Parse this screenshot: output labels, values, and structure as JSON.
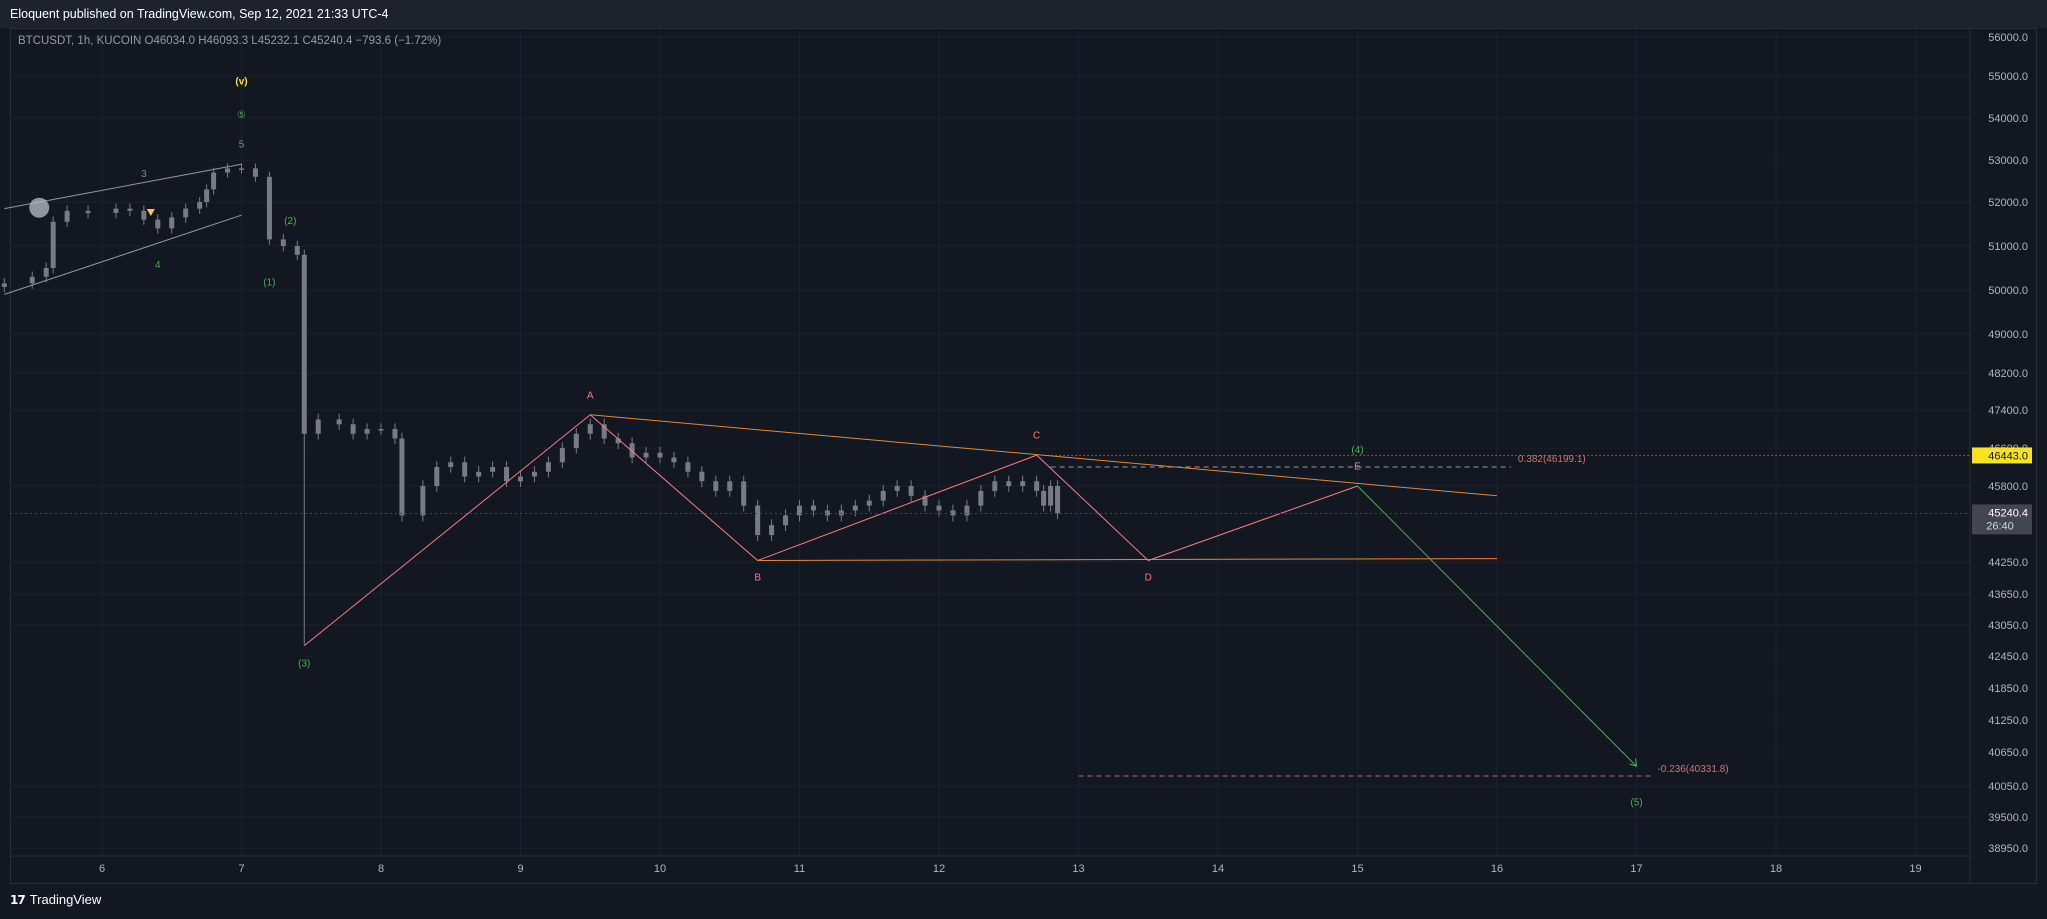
{
  "header": {
    "published_text": "Eloquent published on TradingView.com, Sep 12, 2021 21:33 UTC-4"
  },
  "legend": {
    "text": "BTCUSDT, 1h, KUCOIN  O46034.0  H46093.3  L45232.1  C45240.4  −793.6 (−1.72%)"
  },
  "footer": {
    "brand": "TradingView",
    "logo_icon": "tradingview-logo-icon"
  },
  "colors": {
    "background": "#131722",
    "grid": "#1c2030",
    "candle": "#787b86",
    "wave_green": "#4caf50",
    "wave_red": "#f77c80",
    "triangle_orange": "#e0873c",
    "wave_v": "#f2e437",
    "price_tag": "#f7e41f",
    "current_tag": "#434651"
  },
  "chart_data": {
    "type": "candlestick",
    "symbol": "BTCUSDT",
    "interval": "1h",
    "exchange": "KUCOIN",
    "ohlc": {
      "open": 46034.0,
      "high": 46093.3,
      "low": 45232.1,
      "close": 45240.4,
      "change": "−793.6 (−1.72%)"
    },
    "y_axis_labels": [
      "56000.0",
      "55000.0",
      "54000.0",
      "53000.0",
      "52000.0",
      "51000.0",
      "50000.0",
      "49000.0",
      "48200.0",
      "47400.0",
      "46600.0",
      "45800.0",
      "44250.0",
      "43650.0",
      "43050.0",
      "42450.0",
      "41850.0",
      "41250.0",
      "40650.0",
      "40050.0",
      "39500.0",
      "38950.0"
    ],
    "x_axis_labels": [
      "6",
      "7",
      "8",
      "9",
      "10",
      "11",
      "12",
      "13",
      "14",
      "15",
      "16",
      "17",
      "18",
      "19"
    ],
    "x_range_days": [
      5.3,
      19.3
    ],
    "price_tags": {
      "level": "46443.0",
      "current": "45240.4",
      "countdown": "26:40"
    },
    "fib_levels": [
      {
        "label": "0.382(46199.1)",
        "value": 46199.1
      },
      {
        "label": "-0.236(40331.8)",
        "value": 40331.8
      }
    ],
    "candles_approx": [
      [
        5.3,
        50150
      ],
      [
        5.5,
        50300
      ],
      [
        5.6,
        50500
      ],
      [
        5.65,
        51550
      ],
      [
        5.75,
        51800
      ],
      [
        5.9,
        51750
      ],
      [
        6.1,
        51850
      ],
      [
        6.2,
        51800
      ],
      [
        6.3,
        51600
      ],
      [
        6.4,
        51400
      ],
      [
        6.5,
        51650
      ],
      [
        6.6,
        51850
      ],
      [
        6.7,
        52000
      ],
      [
        6.75,
        52300
      ],
      [
        6.8,
        52700
      ],
      [
        6.9,
        52800
      ],
      [
        7.0,
        52800
      ],
      [
        7.1,
        52600
      ],
      [
        7.2,
        51150
      ],
      [
        7.3,
        51000
      ],
      [
        7.4,
        50800
      ],
      [
        7.45,
        46900
      ],
      [
        7.55,
        47200
      ],
      [
        7.7,
        47100
      ],
      [
        7.8,
        46900
      ],
      [
        7.9,
        47000
      ],
      [
        8.0,
        47000
      ],
      [
        8.1,
        46800
      ],
      [
        8.15,
        45200
      ],
      [
        8.3,
        45800
      ],
      [
        8.4,
        46200
      ],
      [
        8.5,
        46300
      ],
      [
        8.6,
        46000
      ],
      [
        8.7,
        46100
      ],
      [
        8.8,
        46200
      ],
      [
        8.9,
        45900
      ],
      [
        9.0,
        46000
      ],
      [
        9.1,
        46100
      ],
      [
        9.2,
        46300
      ],
      [
        9.3,
        46600
      ],
      [
        9.4,
        46900
      ],
      [
        9.5,
        47100
      ],
      [
        9.6,
        46800
      ],
      [
        9.7,
        46700
      ],
      [
        9.8,
        46400
      ],
      [
        9.9,
        46500
      ],
      [
        10.0,
        46400
      ],
      [
        10.1,
        46300
      ],
      [
        10.2,
        46100
      ],
      [
        10.3,
        45900
      ],
      [
        10.4,
        45700
      ],
      [
        10.5,
        45900
      ],
      [
        10.6,
        45400
      ],
      [
        10.7,
        44800
      ],
      [
        10.8,
        45000
      ],
      [
        10.9,
        45200
      ],
      [
        11.0,
        45400
      ],
      [
        11.1,
        45300
      ],
      [
        11.2,
        45200
      ],
      [
        11.3,
        45300
      ],
      [
        11.4,
        45400
      ],
      [
        11.5,
        45500
      ],
      [
        11.6,
        45700
      ],
      [
        11.7,
        45800
      ],
      [
        11.8,
        45600
      ],
      [
        11.9,
        45400
      ],
      [
        12.0,
        45300
      ],
      [
        12.1,
        45200
      ],
      [
        12.2,
        45400
      ],
      [
        12.3,
        45700
      ],
      [
        12.4,
        45900
      ],
      [
        12.5,
        45800
      ],
      [
        12.6,
        45900
      ],
      [
        12.7,
        45700
      ],
      [
        12.75,
        45400
      ],
      [
        12.8,
        45800
      ],
      [
        12.85,
        45240
      ]
    ],
    "lines": {
      "wedge_upper": [
        [
          5.3,
          51850
        ],
        [
          7.0,
          52900
        ]
      ],
      "wedge_lower": [
        [
          5.3,
          49900
        ],
        [
          7.0,
          51700
        ]
      ],
      "abc_red": [
        [
          7.45,
          42650
        ],
        [
          9.5,
          47300
        ],
        [
          10.7,
          44280
        ],
        [
          12.7,
          46450
        ],
        [
          13.5,
          44280
        ],
        [
          15.0,
          45800
        ]
      ],
      "triangle_upper": [
        [
          9.5,
          47300
        ],
        [
          16.0,
          45600
        ]
      ],
      "triangle_lower": [
        [
          10.7,
          44280
        ],
        [
          16.0,
          44320
        ]
      ],
      "projection_green": [
        [
          15.0,
          45800
        ],
        [
          17.0,
          40400
        ]
      ]
    },
    "wave_labels": [
      {
        "text": "(v)",
        "x": 7.0,
        "y": 54800,
        "color": "wave_v"
      },
      {
        "text": "⑤",
        "x": 7.0,
        "y": 54000,
        "color": "wave_green"
      },
      {
        "text": "5",
        "x": 7.0,
        "y": 53300,
        "color": "wave_green"
      },
      {
        "text": "3",
        "x": 6.3,
        "y": 52600,
        "color": "wave_green"
      },
      {
        "text": "4",
        "x": 6.4,
        "y": 50500,
        "color": "wave_green"
      },
      {
        "text": "(2)",
        "x": 7.35,
        "y": 51500,
        "color": "wave_green"
      },
      {
        "text": "(1)",
        "x": 7.2,
        "y": 50100,
        "color": "wave_green"
      },
      {
        "text": "(3)",
        "x": 7.45,
        "y": 42250,
        "color": "wave_green"
      },
      {
        "text": "A",
        "x": 9.5,
        "y": 47650,
        "color": "wave_red"
      },
      {
        "text": "B",
        "x": 10.7,
        "y": 43900,
        "color": "wave_red"
      },
      {
        "text": "C",
        "x": 12.7,
        "y": 46800,
        "color": "wave_red"
      },
      {
        "text": "D",
        "x": 13.5,
        "y": 43900,
        "color": "wave_red"
      },
      {
        "text": "E",
        "x": 15.0,
        "y": 46150,
        "color": "wave_red"
      },
      {
        "text": "(4)",
        "x": 15.0,
        "y": 46500,
        "color": "wave_green"
      },
      {
        "text": "(5)",
        "x": 17.0,
        "y": 39700,
        "color": "wave_green"
      }
    ]
  }
}
